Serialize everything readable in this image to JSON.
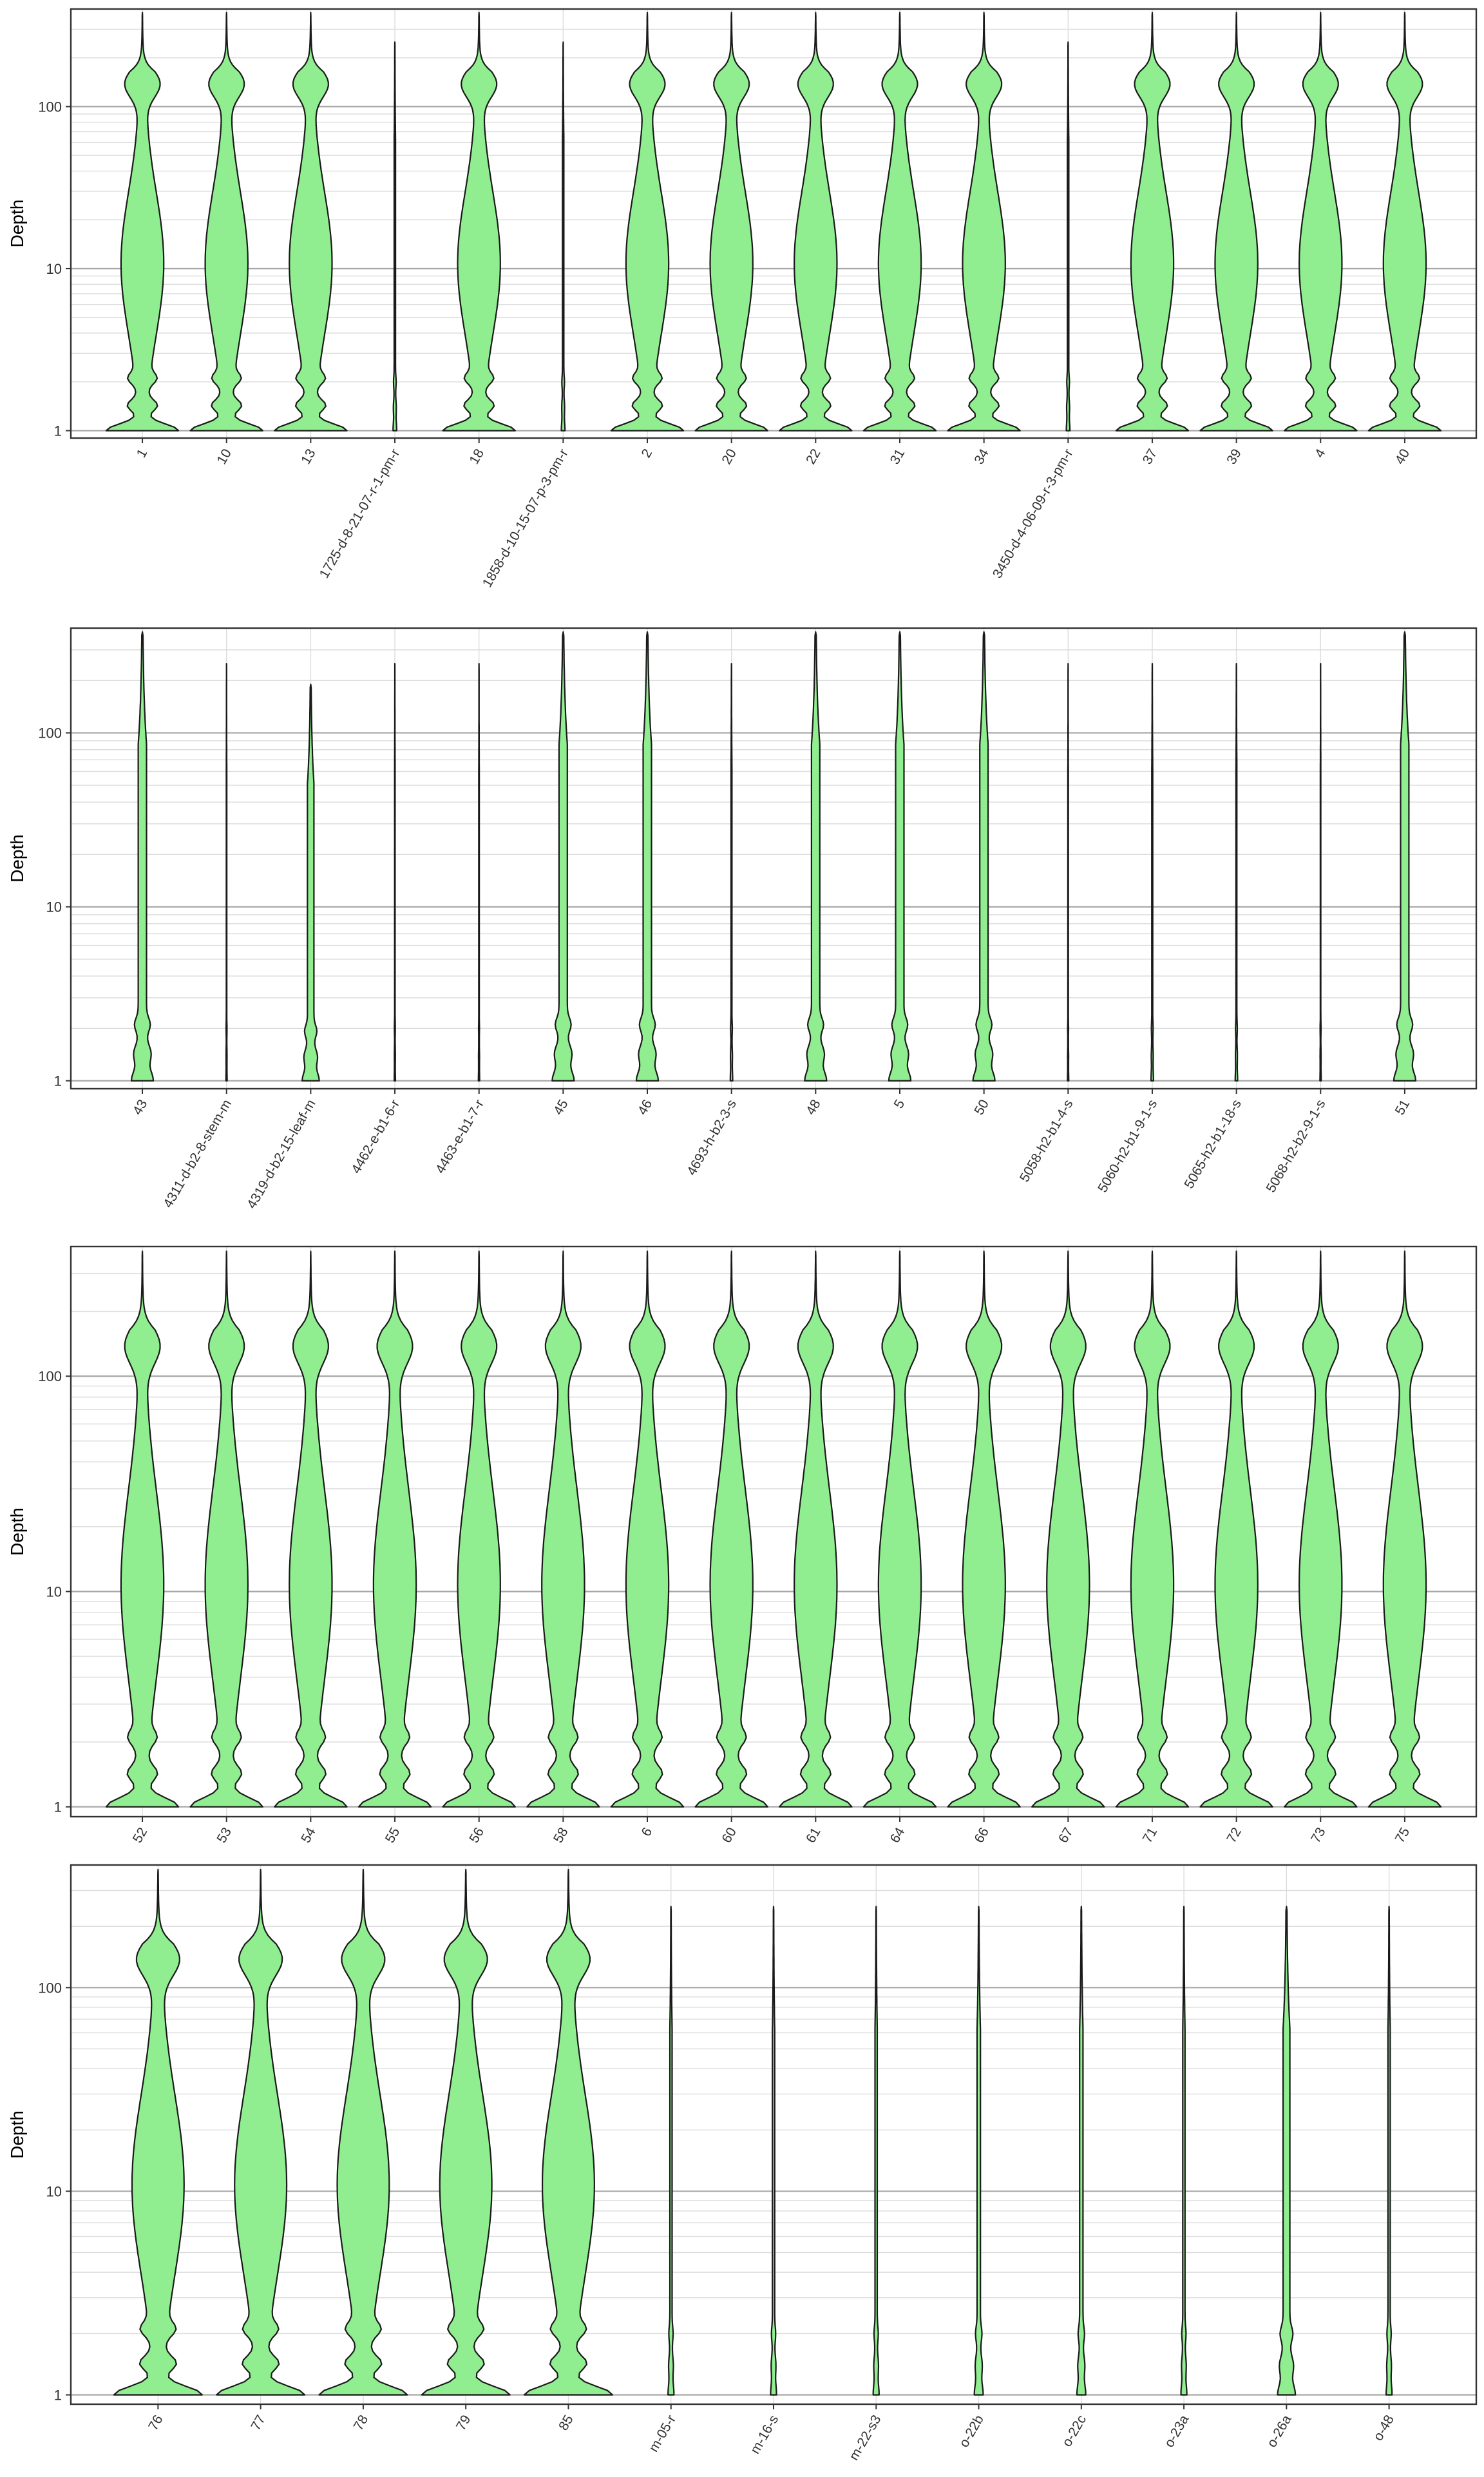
{
  "colors": {
    "violin_fill": "#90ee90",
    "violin_stroke": "#1a1a1a",
    "panel_border": "#333333",
    "grid_major": "#a6a6a6",
    "grid_minor": "#dcdcdc",
    "text": "#333333"
  },
  "chart_data": [
    {
      "type": "violin",
      "ylabel": "Depth",
      "yscale": "log10",
      "ylim": [
        0.9,
        400
      ],
      "y_ticks": [
        "1",
        "10",
        "100"
      ],
      "grid": true,
      "categories": [
        "1",
        "10",
        "13",
        "1725-d-8-21-07-r-1-pm-r",
        "18",
        "1858-d-10-15-07-p-3-pm-r",
        "2",
        "20",
        "22",
        "31",
        "34",
        "3450-d-4-06-09-r-3-pm-r",
        "37",
        "39",
        "4",
        "40"
      ],
      "max_depth": [
        380,
        380,
        380,
        250,
        380,
        250,
        380,
        380,
        380,
        380,
        380,
        250,
        380,
        380,
        380,
        380
      ],
      "relative_width": [
        0.86,
        0.86,
        0.86,
        0.03,
        0.86,
        0.03,
        0.86,
        0.86,
        0.86,
        0.86,
        0.86,
        0.03,
        0.86,
        0.86,
        0.86,
        0.86
      ]
    },
    {
      "type": "violin",
      "ylabel": "Depth",
      "yscale": "log10",
      "ylim": [
        0.9,
        400
      ],
      "y_ticks": [
        "1",
        "10",
        "100"
      ],
      "grid": true,
      "categories": [
        "43",
        "4311-d-b2-8-stem-m",
        "4319-d-b2-15-leaf-m",
        "4462-e-b1-6-r",
        "4463-e-b1-7-r",
        "45",
        "46",
        "4693-h-b2-3-s",
        "48",
        "5",
        "50",
        "5058-h2-b1-4-s",
        "5060-h2-b1-9-1-s",
        "5065-h2-b1-18-s",
        "5068-h2-b2-9-1-s",
        "51"
      ],
      "max_depth": [
        380,
        250,
        190,
        250,
        250,
        380,
        380,
        250,
        380,
        380,
        380,
        250,
        250,
        250,
        250,
        380
      ],
      "relative_width": [
        0.18,
        0.01,
        0.14,
        0.01,
        0.01,
        0.18,
        0.18,
        0.02,
        0.18,
        0.18,
        0.18,
        0.01,
        0.02,
        0.02,
        0.01,
        0.18
      ]
    },
    {
      "type": "violin",
      "ylabel": "Depth",
      "yscale": "log10",
      "ylim": [
        0.9,
        400
      ],
      "y_ticks": [
        "1",
        "10",
        "100"
      ],
      "grid": true,
      "categories": [
        "52",
        "53",
        "54",
        "55",
        "56",
        "58",
        "6",
        "60",
        "61",
        "64",
        "66",
        "67",
        "71",
        "72",
        "73",
        "75"
      ],
      "max_depth": [
        380,
        380,
        380,
        380,
        380,
        380,
        380,
        380,
        380,
        380,
        380,
        380,
        380,
        380,
        380,
        380
      ],
      "relative_width": [
        0.86,
        0.86,
        0.86,
        0.86,
        0.86,
        0.86,
        0.86,
        0.86,
        0.86,
        0.86,
        0.86,
        0.86,
        0.86,
        0.86,
        0.86,
        0.86
      ]
    },
    {
      "type": "violin",
      "ylabel": "Depth",
      "yscale": "log10",
      "ylim": [
        0.9,
        400
      ],
      "y_ticks": [
        "1",
        "10",
        "100"
      ],
      "grid": true,
      "categories": [
        "76",
        "77",
        "78",
        "79",
        "85",
        "m-05-r",
        "m-16-s",
        "m-22-s3",
        "o-22b",
        "o-22c",
        "o-23a",
        "o-26a",
        "o-48"
      ],
      "max_depth": [
        380,
        380,
        380,
        380,
        380,
        250,
        250,
        250,
        250,
        250,
        250,
        250,
        250
      ],
      "relative_width": [
        0.86,
        0.86,
        0.86,
        0.86,
        0.86,
        0.04,
        0.04,
        0.04,
        0.06,
        0.06,
        0.04,
        0.12,
        0.04
      ]
    }
  ]
}
